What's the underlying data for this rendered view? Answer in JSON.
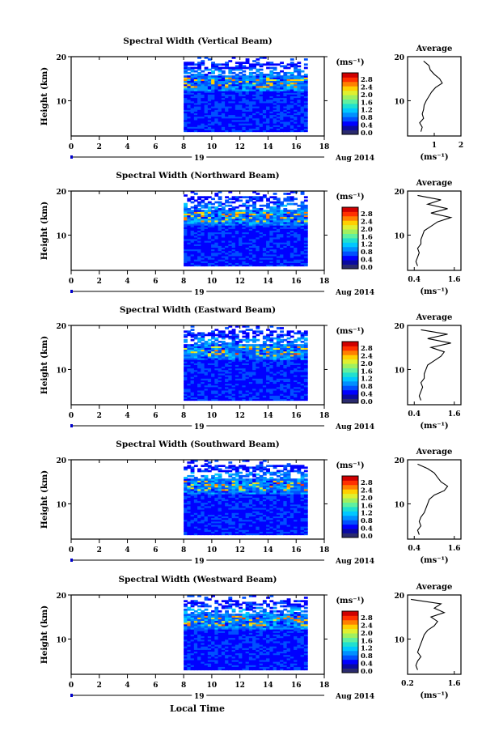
{
  "figure": {
    "xlabel": "Local Time",
    "date_label": "Aug 2014",
    "day_label": "19",
    "unit_label": "(ms⁻¹)",
    "avg_title": "Average",
    "avg_xlabel": "(ms⁻¹)",
    "colormap": [
      "#2a2a6e",
      "#0a0aa0",
      "#0000ff",
      "#0050ff",
      "#0090ff",
      "#00c8ff",
      "#20e0d0",
      "#60f0a0",
      "#a0f060",
      "#e0f030",
      "#ffd000",
      "#ff8000",
      "#ff3000",
      "#d00000"
    ]
  },
  "chart_data": [
    {
      "type": "heatmap",
      "title": "Spectral Width (Vertical Beam)",
      "ylabel": "Height (km)",
      "xlim": [
        0,
        18
      ],
      "ylim": [
        2,
        20
      ],
      "xticks": [
        "0",
        "2",
        "4",
        "6",
        "8",
        "10",
        "12",
        "14",
        "16",
        "18"
      ],
      "yticks": [
        "10",
        "20"
      ],
      "data_xrange": [
        8,
        16.8
      ],
      "colorbar": {
        "range": [
          0,
          3.0
        ],
        "ticks": [
          "2.8",
          "2.4",
          "2.0",
          "1.6",
          "1.2",
          "0.8",
          "0.4",
          "0.0"
        ]
      },
      "average": {
        "xlim": [
          0,
          2
        ],
        "xticks": [
          "1",
          "2"
        ],
        "yticks": [
          "10",
          "20"
        ],
        "profile_heights": [
          3,
          4,
          5,
          6,
          7,
          8,
          9,
          10,
          11,
          12,
          13,
          14,
          15,
          16,
          17,
          18,
          19
        ],
        "profile_values": [
          0.5,
          0.55,
          0.45,
          0.6,
          0.55,
          0.6,
          0.62,
          0.7,
          0.8,
          0.9,
          1.05,
          1.3,
          1.2,
          1.0,
          0.85,
          0.8,
          0.6
        ]
      }
    },
    {
      "type": "heatmap",
      "title": "Spectral Width (Northward Beam)",
      "ylabel": "Height (km)",
      "xlim": [
        0,
        18
      ],
      "ylim": [
        2,
        20
      ],
      "xticks": [
        "0",
        "2",
        "4",
        "6",
        "8",
        "10",
        "12",
        "14",
        "16",
        "18"
      ],
      "yticks": [
        "10",
        "20"
      ],
      "data_xrange": [
        8,
        16.8
      ],
      "colorbar": {
        "range": [
          0,
          3.0
        ],
        "ticks": [
          "2.8",
          "2.4",
          "2.0",
          "1.6",
          "1.2",
          "0.8",
          "0.4",
          "0.0"
        ]
      },
      "average": {
        "xlim": [
          0.2,
          1.8
        ],
        "xticks": [
          "0.4",
          "1.6"
        ],
        "yticks": [
          "10",
          "20"
        ],
        "profile_heights": [
          3,
          4,
          5,
          6,
          7,
          8,
          9,
          10,
          11,
          12,
          13,
          14,
          15,
          16,
          17,
          18,
          19
        ],
        "profile_values": [
          0.5,
          0.45,
          0.5,
          0.55,
          0.5,
          0.6,
          0.6,
          0.65,
          0.7,
          0.9,
          1.1,
          1.5,
          0.9,
          1.4,
          0.8,
          1.2,
          0.5
        ]
      }
    },
    {
      "type": "heatmap",
      "title": "Spectral Width (Eastward Beam)",
      "ylabel": "Height (km)",
      "xlim": [
        0,
        18
      ],
      "ylim": [
        2,
        20
      ],
      "xticks": [
        "0",
        "2",
        "4",
        "6",
        "8",
        "10",
        "12",
        "14",
        "16",
        "18"
      ],
      "yticks": [
        "10",
        "20"
      ],
      "data_xrange": [
        8,
        16.8
      ],
      "colorbar": {
        "range": [
          0,
          3.0
        ],
        "ticks": [
          "2.8",
          "2.4",
          "2.0",
          "1.6",
          "1.2",
          "0.8",
          "0.4",
          "0.0"
        ]
      },
      "average": {
        "xlim": [
          0.2,
          1.8
        ],
        "xticks": [
          "0.4",
          "1.6"
        ],
        "yticks": [
          "10",
          "20"
        ],
        "profile_heights": [
          3,
          4,
          5,
          6,
          7,
          8,
          9,
          10,
          11,
          12,
          13,
          14,
          15,
          16,
          17,
          18,
          19
        ],
        "profile_values": [
          0.6,
          0.55,
          0.6,
          0.65,
          0.6,
          0.7,
          0.7,
          0.75,
          0.8,
          1.0,
          1.2,
          1.3,
          0.9,
          1.5,
          0.8,
          1.4,
          0.6
        ]
      }
    },
    {
      "type": "heatmap",
      "title": "Spectral Width (Southward Beam)",
      "ylabel": "Height (km)",
      "xlim": [
        0,
        18
      ],
      "ylim": [
        2,
        20
      ],
      "xticks": [
        "0",
        "2",
        "4",
        "6",
        "8",
        "10",
        "12",
        "14",
        "16",
        "18"
      ],
      "yticks": [
        "10",
        "20"
      ],
      "data_xrange": [
        8,
        16.8
      ],
      "colorbar": {
        "range": [
          0,
          3.0
        ],
        "ticks": [
          "2.8",
          "2.4",
          "2.0",
          "1.6",
          "1.2",
          "0.8",
          "0.4",
          "0.0"
        ]
      },
      "average": {
        "xlim": [
          0.2,
          1.8
        ],
        "xticks": [
          "0.4",
          "1.6"
        ],
        "yticks": [
          "10",
          "20"
        ],
        "profile_heights": [
          3,
          4,
          5,
          6,
          7,
          8,
          9,
          10,
          11,
          12,
          13,
          14,
          15,
          16,
          17,
          18,
          19
        ],
        "profile_values": [
          0.55,
          0.5,
          0.6,
          0.55,
          0.6,
          0.7,
          0.75,
          0.8,
          0.85,
          1.0,
          1.3,
          1.4,
          1.2,
          1.1,
          1.0,
          0.8,
          0.5
        ]
      }
    },
    {
      "type": "heatmap",
      "title": "Spectral Width (Westward Beam)",
      "ylabel": "Height (km)",
      "xlim": [
        0,
        18
      ],
      "ylim": [
        2,
        20
      ],
      "xticks": [
        "0",
        "2",
        "4",
        "6",
        "8",
        "10",
        "12",
        "14",
        "16",
        "18"
      ],
      "yticks": [
        "10",
        "20"
      ],
      "data_xrange": [
        8,
        16.8
      ],
      "colorbar": {
        "range": [
          0,
          3.0
        ],
        "ticks": [
          "2.8",
          "2.4",
          "2.0",
          "1.6",
          "1.2",
          "0.8",
          "0.4",
          "0.0"
        ]
      },
      "average": {
        "xlim": [
          0.2,
          1.8
        ],
        "xticks": [
          "0.2",
          "1.6"
        ],
        "yticks": [
          "10",
          "20"
        ],
        "profile_heights": [
          3,
          4,
          5,
          6,
          7,
          8,
          9,
          10,
          11,
          12,
          13,
          14,
          15,
          16,
          17,
          18,
          19
        ],
        "profile_values": [
          0.5,
          0.45,
          0.5,
          0.6,
          0.5,
          0.55,
          0.6,
          0.65,
          0.7,
          0.8,
          1.0,
          1.1,
          0.9,
          1.3,
          1.0,
          1.2,
          0.3
        ]
      }
    }
  ]
}
